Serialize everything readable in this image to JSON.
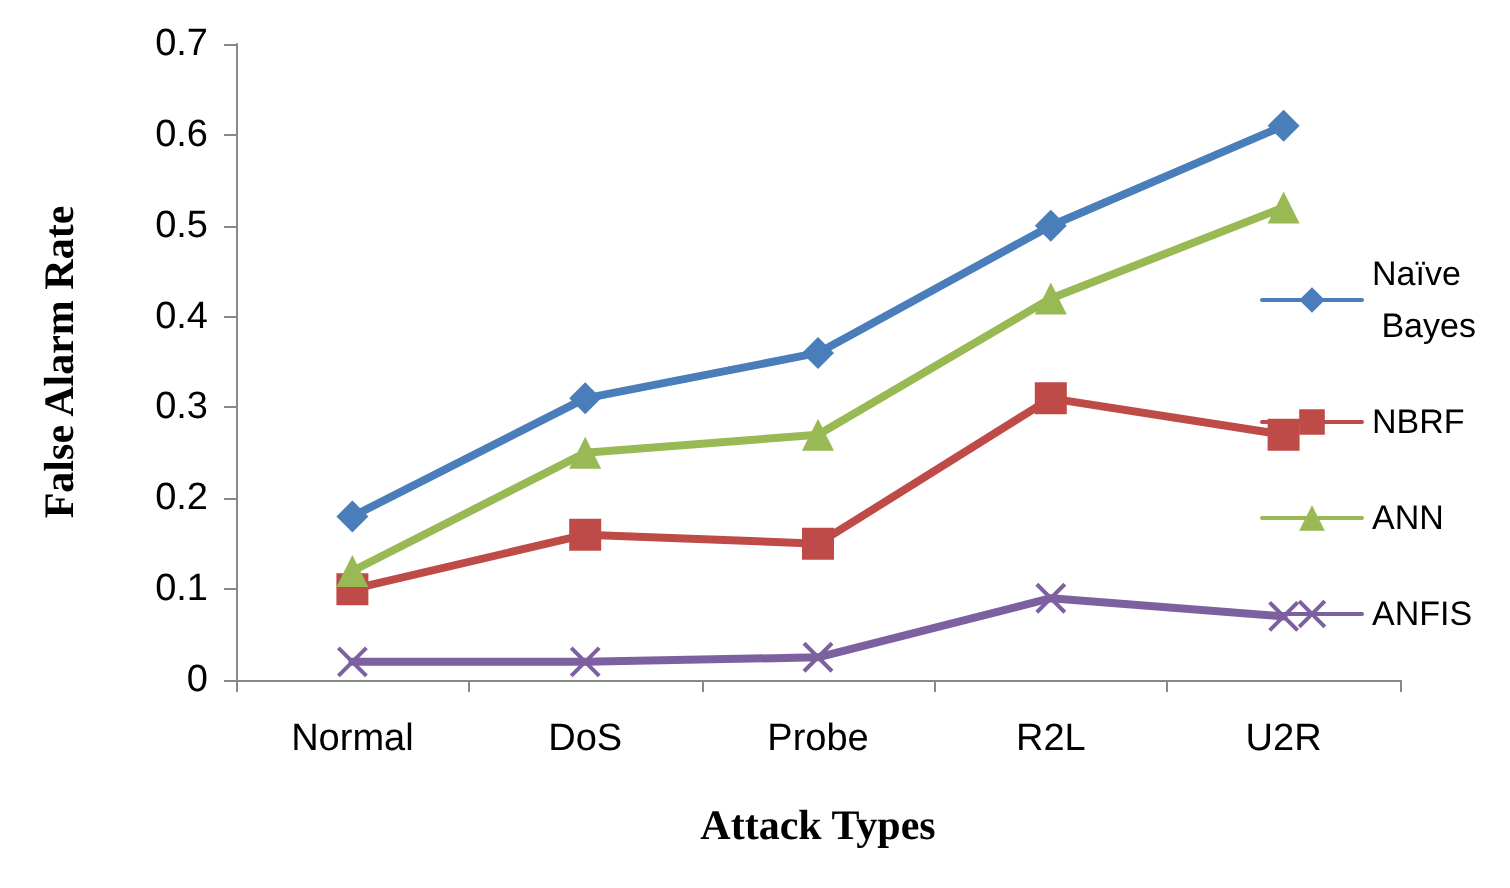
{
  "chart_data": {
    "type": "line",
    "xlabel": "Attack Types",
    "ylabel": "False Alarm Rate",
    "categories": [
      "Normal",
      "DoS",
      "Probe",
      "R2L",
      "U2R"
    ],
    "ylim": [
      0,
      0.7
    ],
    "yticks": [
      0,
      0.1,
      0.2,
      0.3,
      0.4,
      0.5,
      0.6,
      0.7
    ],
    "grid": false,
    "legend": "right",
    "series": [
      {
        "name": "Naïve Bayes",
        "color": "#4a7ebb",
        "marker": "diamond",
        "values": [
          0.18,
          0.31,
          0.36,
          0.5,
          0.61
        ]
      },
      {
        "name": "NBRF",
        "color": "#be4b48",
        "marker": "square",
        "values": [
          0.1,
          0.16,
          0.15,
          0.31,
          0.27
        ]
      },
      {
        "name": "ANN",
        "color": "#98b954",
        "marker": "triangle",
        "values": [
          0.12,
          0.25,
          0.27,
          0.42,
          0.52
        ]
      },
      {
        "name": "ANFIS",
        "color": "#7d60a0",
        "marker": "cross",
        "values": [
          0.02,
          0.02,
          0.025,
          0.09,
          0.07
        ]
      }
    ]
  }
}
